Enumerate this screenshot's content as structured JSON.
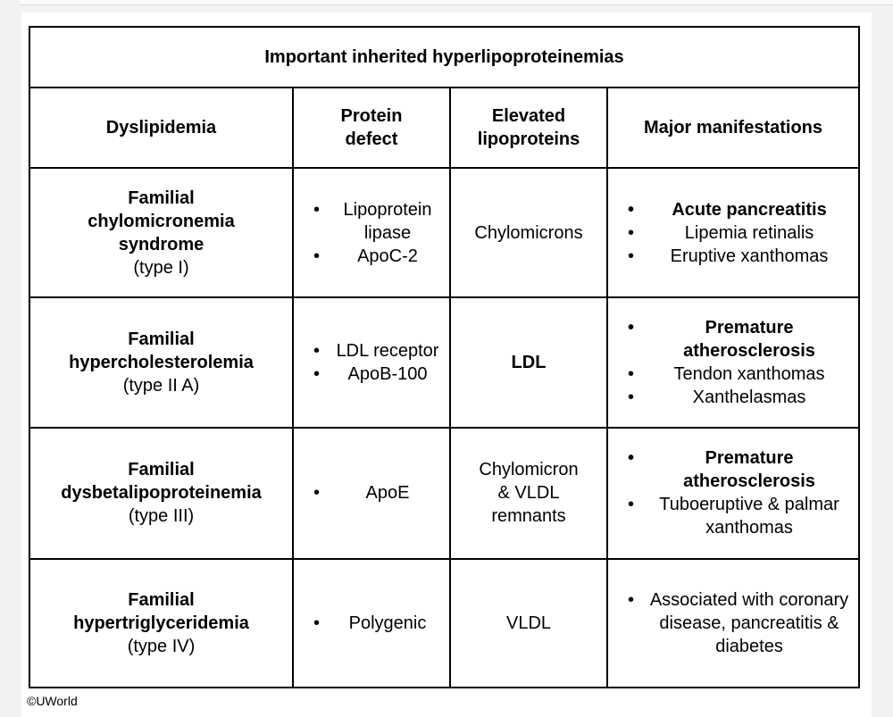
{
  "table": {
    "title": "Important inherited hyperlipoproteinemias",
    "headers": {
      "dyslipidemia": "Dyslipidemia",
      "protein_defect": [
        "Protein",
        "defect"
      ],
      "elevated": [
        "Elevated",
        "lipoproteins"
      ],
      "manifestations": "Major manifestations"
    },
    "rows": [
      {
        "name": [
          "Familial",
          "chylomicronemia",
          "syndrome"
        ],
        "type": "(type I)",
        "protein": [
          "Lipoprotein lipase",
          "ApoC-2"
        ],
        "lipoproteins": "Chylomicrons",
        "manifestations": [
          "Acute pancreatitis",
          "Lipemia retinalis",
          "Eruptive xanthomas"
        ]
      },
      {
        "name": [
          "Familial",
          "hypercholesterolemia"
        ],
        "type": "(type II A)",
        "protein": [
          "LDL receptor",
          "ApoB-100"
        ],
        "lipoproteins": "LDL",
        "manifestations": [
          "Premature atherosclerosis",
          "Tendon xanthomas",
          "Xanthelasmas"
        ]
      },
      {
        "name": [
          "Familial",
          "dysbetalipoproteinemia"
        ],
        "type": "(type III)",
        "protein": [
          "ApoE"
        ],
        "lipoproteins": [
          "Chylomicron",
          "& VLDL",
          "remnants"
        ],
        "manifestations": [
          "Premature atherosclerosis",
          "Tuboeruptive & palmar xanthomas"
        ]
      },
      {
        "name": [
          "Familial",
          "hypertriglyceridemia"
        ],
        "type": "(type IV)",
        "protein": [
          "Polygenic"
        ],
        "lipoproteins": "VLDL",
        "manifestations": [
          "Associated with coronary disease, pancreatitis & diabetes"
        ]
      }
    ]
  },
  "copyright": "©UWorld"
}
